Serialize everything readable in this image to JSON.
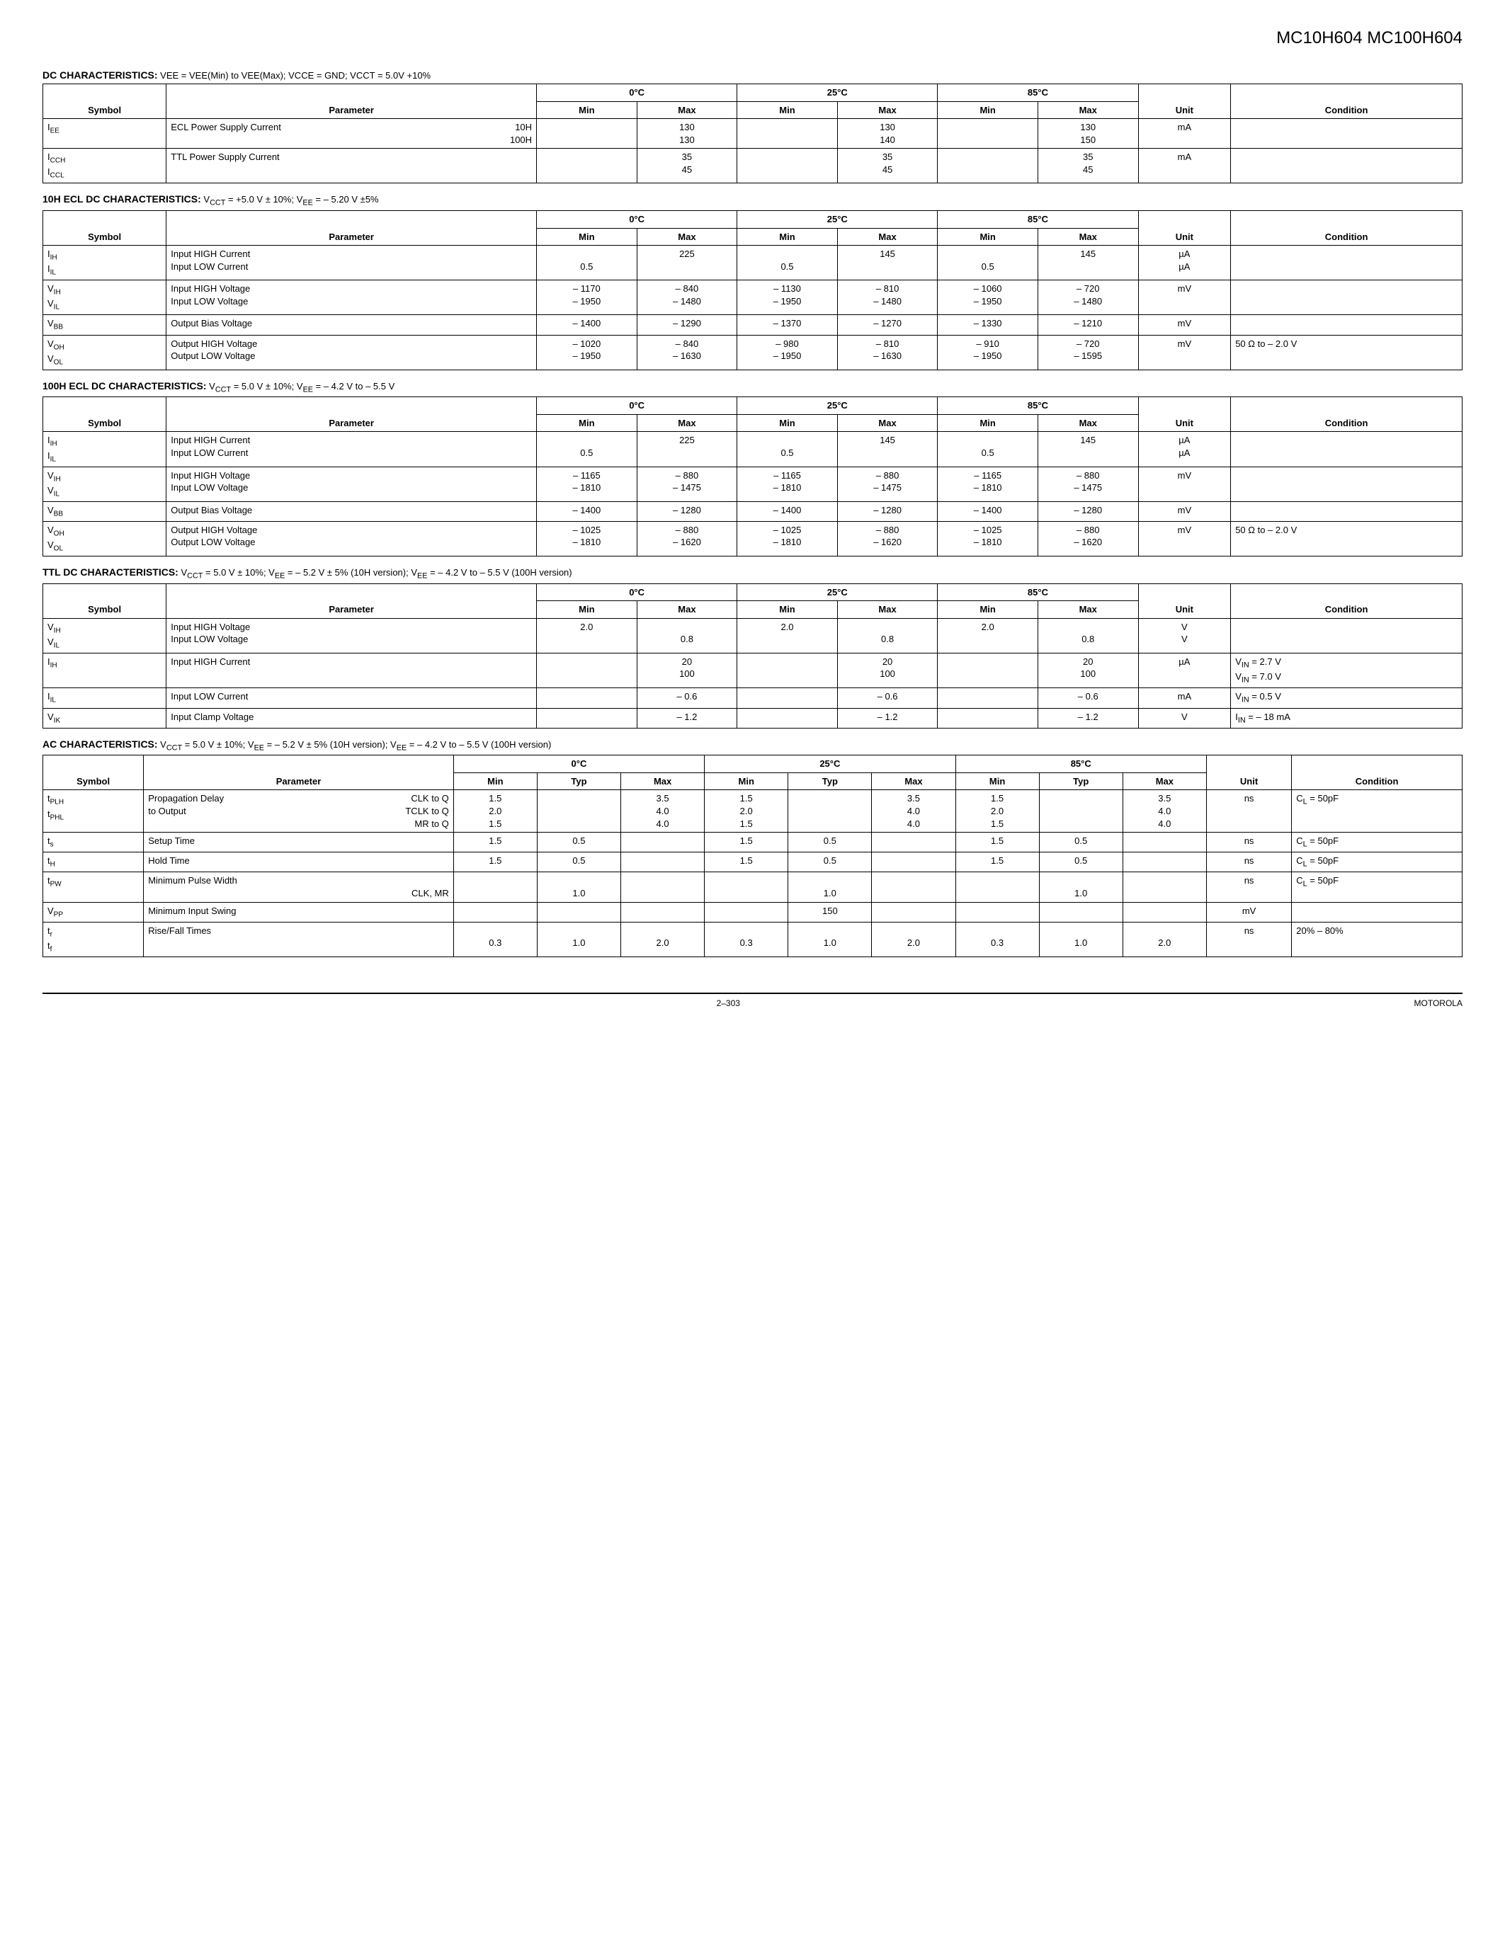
{
  "page": {
    "part_numbers": "MC10H604 MC100H604",
    "page_number": "2–303",
    "vendor": "MOTOROLA"
  },
  "tables": {
    "dc": {
      "title_bold": "DC CHARACTERISTICS:",
      "title_cond": " VEE = VEE(Min) to VEE(Max); VCCE = GND; VCCT = 5.0V +10%",
      "temps": [
        "0°C",
        "25°C",
        "85°C"
      ],
      "head": {
        "symbol": "Symbol",
        "parameter": "Parameter",
        "min": "Min",
        "max": "Max",
        "unit": "Unit",
        "condition": "Condition"
      },
      "rows": [
        {
          "sym_html": "I<span class='sub'>EE</span>",
          "param_left": "ECL Power Supply Current",
          "param_right": "10H\n100H",
          "min0": "",
          "max0": "130\n130",
          "min25": "",
          "max25": "130\n140",
          "min85": "",
          "max85": "130\n150",
          "unit": "mA",
          "cond": ""
        },
        {
          "sym_html": "I<span class='sub'>CCH</span>\nI<span class='sub'>CCL</span>",
          "param_left": "TTL Power Supply Current",
          "param_right": "",
          "min0": "",
          "max0": "35\n45",
          "min25": "",
          "max25": "35\n45",
          "min85": "",
          "max85": "35\n45",
          "unit": "mA",
          "cond": ""
        }
      ]
    },
    "ecl10h": {
      "title_bold": "10H ECL DC CHARACTERISTICS:",
      "title_cond": " V<sub>CCT</sub> = +5.0 V ± 10%; V<sub>EE</sub> = – 5.20 V ±5%",
      "temps": [
        "0°C",
        "25°C",
        "85°C"
      ],
      "head": {
        "symbol": "Symbol",
        "parameter": "Parameter",
        "min": "Min",
        "max": "Max",
        "unit": "Unit",
        "condition": "Condition"
      },
      "rows": [
        {
          "sym_html": "I<span class='sub'>IH</span>\nI<span class='sub'>IL</span>",
          "param": "Input HIGH Current\nInput LOW Current",
          "min0": "\n0.5",
          "max0": "225",
          "min25": "\n0.5",
          "max25": "145",
          "min85": "\n0.5",
          "max85": "145",
          "unit": "µA\nµA",
          "cond": ""
        },
        {
          "sym_html": "V<span class='sub'>IH</span>\nV<span class='sub'>IL</span>",
          "param": "Input HIGH Voltage\nInput LOW Voltage",
          "min0": "– 1170\n– 1950",
          "max0": "– 840\n– 1480",
          "min25": "– 1130\n– 1950",
          "max25": "– 810\n– 1480",
          "min85": "– 1060\n– 1950",
          "max85": "– 720\n– 1480",
          "unit": "mV",
          "cond": ""
        },
        {
          "sym_html": "V<span class='sub'>BB</span>",
          "param": "Output Bias Voltage",
          "min0": "– 1400",
          "max0": "– 1290",
          "min25": "– 1370",
          "max25": "– 1270",
          "min85": "– 1330",
          "max85": "– 1210",
          "unit": "mV",
          "cond": ""
        },
        {
          "sym_html": "V<span class='sub'>OH</span>\nV<span class='sub'>OL</span>",
          "param": "Output HIGH Voltage\nOutput LOW Voltage",
          "min0": "– 1020\n– 1950",
          "max0": "– 840\n– 1630",
          "min25": "– 980\n– 1950",
          "max25": "– 810\n– 1630",
          "min85": "– 910\n– 1950",
          "max85": "– 720\n– 1595",
          "unit": "mV",
          "cond": "50 Ω to – 2.0 V"
        }
      ]
    },
    "ecl100h": {
      "title_bold": "100H ECL DC CHARACTERISTICS:",
      "title_cond": " V<sub>CCT</sub> = 5.0 V ± 10%; V<sub>EE</sub> = – 4.2 V to – 5.5 V",
      "temps": [
        "0°C",
        "25°C",
        "85°C"
      ],
      "head": {
        "symbol": "Symbol",
        "parameter": "Parameter",
        "min": "Min",
        "max": "Max",
        "unit": "Unit",
        "condition": "Condition"
      },
      "rows": [
        {
          "sym_html": "I<span class='sub'>IH</span>\nI<span class='sub'>IL</span>",
          "param": "Input HIGH Current\nInput LOW Current",
          "min0": "\n0.5",
          "max0": "225",
          "min25": "\n0.5",
          "max25": "145",
          "min85": "\n0.5",
          "max85": "145",
          "unit": "µA\nµA",
          "cond": ""
        },
        {
          "sym_html": "V<span class='sub'>IH</span>\nV<span class='sub'>IL</span>",
          "param": "Input HIGH Voltage\nInput LOW Voltage",
          "min0": "– 1165\n– 1810",
          "max0": "– 880\n– 1475",
          "min25": "– 1165\n– 1810",
          "max25": "– 880\n– 1475",
          "min85": "– 1165\n– 1810",
          "max85": "– 880\n– 1475",
          "unit": "mV",
          "cond": ""
        },
        {
          "sym_html": "V<span class='sub'>BB</span>",
          "param": "Output Bias Voltage",
          "min0": "– 1400",
          "max0": "– 1280",
          "min25": "– 1400",
          "max25": "– 1280",
          "min85": "– 1400",
          "max85": "– 1280",
          "unit": "mV",
          "cond": ""
        },
        {
          "sym_html": "V<span class='sub'>OH</span>\nV<span class='sub'>OL</span>",
          "param": "Output HIGH Voltage\nOutput LOW Voltage",
          "min0": "– 1025\n– 1810",
          "max0": "– 880\n– 1620",
          "min25": "– 1025\n– 1810",
          "max25": "– 880\n– 1620",
          "min85": "– 1025\n– 1810",
          "max85": "– 880\n– 1620",
          "unit": "mV",
          "cond": "50 Ω to – 2.0 V"
        }
      ]
    },
    "ttl": {
      "title_bold": "TTL DC CHARACTERISTICS:",
      "title_cond": " V<sub>CCT</sub> = 5.0 V ± 10%; V<sub>EE</sub> = – 5.2 V ± 5% (10H version); V<sub>EE</sub> = – 4.2 V to – 5.5 V (100H version)",
      "temps": [
        "0°C",
        "25°C",
        "85°C"
      ],
      "head": {
        "symbol": "Symbol",
        "parameter": "Parameter",
        "min": "Min",
        "max": "Max",
        "unit": "Unit",
        "condition": "Condition"
      },
      "rows": [
        {
          "sym_html": "V<span class='sub'>IH</span>\nV<span class='sub'>IL</span>",
          "param": "Input HIGH Voltage\nInput LOW Voltage",
          "min0": "2.0",
          "max0": "\n0.8",
          "min25": "2.0",
          "max25": "\n0.8",
          "min85": "2.0",
          "max85": "\n0.8",
          "unit": "V\nV",
          "cond": ""
        },
        {
          "sym_html": "I<span class='sub'>IH</span>",
          "param": "Input HIGH Current",
          "min0": "",
          "max0": "20\n100",
          "min25": "",
          "max25": "20\n100",
          "min85": "",
          "max85": "20\n100",
          "unit": "µA",
          "cond": "V<sub>IN</sub> = 2.7 V\nV<sub>IN</sub> = 7.0 V"
        },
        {
          "sym_html": "I<span class='sub'>IL</span>",
          "param": "Input LOW Current",
          "min0": "",
          "max0": "– 0.6",
          "min25": "",
          "max25": "– 0.6",
          "min85": "",
          "max85": "– 0.6",
          "unit": "mA",
          "cond": "V<sub>IN</sub> = 0.5 V"
        },
        {
          "sym_html": "V<span class='sub'>IK</span>",
          "param": "Input Clamp Voltage",
          "min0": "",
          "max0": "– 1.2",
          "min25": "",
          "max25": "– 1.2",
          "min85": "",
          "max85": "– 1.2",
          "unit": "V",
          "cond": "I<sub>IN</sub> = – 18 mA"
        }
      ]
    },
    "ac": {
      "title_bold": "AC CHARACTERISTICS:",
      "title_cond": " V<sub>CCT</sub> = 5.0 V ± 10%; V<sub>EE</sub> = – 5.2 V ± 5% (10H version); V<sub>EE</sub> = – 4.2 V to – 5.5 V (100H version)",
      "temps": [
        "0°C",
        "25°C",
        "85°C"
      ],
      "head": {
        "symbol": "Symbol",
        "parameter": "Parameter",
        "min": "Min",
        "typ": "Typ",
        "max": "Max",
        "unit": "Unit",
        "condition": "Condition"
      },
      "rows": [
        {
          "sym_html": "t<span class='sub'>PLH</span>\nt<span class='sub'>PHL</span>",
          "param_left": "Propagation Delay\nto Output",
          "param_right": "CLK to Q\nTCLK to Q\nMR to Q",
          "min0": "1.5\n2.0\n1.5",
          "typ0": "",
          "max0": "3.5\n4.0\n4.0",
          "min25": "1.5\n2.0\n1.5",
          "typ25": "",
          "max25": "3.5\n4.0\n4.0",
          "min85": "1.5\n2.0\n1.5",
          "typ85": "",
          "max85": "3.5\n4.0\n4.0",
          "unit": "ns",
          "cond": "C<sub>L</sub> = 50pF"
        },
        {
          "sym_html": "t<span class='sub'>s</span>",
          "param": "Setup Time",
          "min0": "1.5",
          "typ0": "0.5",
          "max0": "",
          "min25": "1.5",
          "typ25": "0.5",
          "max25": "",
          "min85": "1.5",
          "typ85": "0.5",
          "max85": "",
          "unit": "ns",
          "cond": "C<sub>L</sub> = 50pF"
        },
        {
          "sym_html": "t<span class='sub'>H</span>",
          "param": "Hold Time",
          "min0": "1.5",
          "typ0": "0.5",
          "max0": "",
          "min25": "1.5",
          "typ25": "0.5",
          "max25": "",
          "min85": "1.5",
          "typ85": "0.5",
          "max85": "",
          "unit": "ns",
          "cond": "C<sub>L</sub> = 50pF"
        },
        {
          "sym_html": "t<span class='sub'>PW</span>",
          "param_left": "Minimum Pulse Width",
          "param_right": "\nCLK, MR",
          "min0": "",
          "typ0": "\n1.0",
          "max0": "",
          "min25": "",
          "typ25": "\n1.0",
          "max25": "",
          "min85": "",
          "typ85": "\n1.0",
          "max85": "",
          "unit": "ns",
          "cond": "C<sub>L</sub> = 50pF"
        },
        {
          "sym_html": "V<span class='sub'>PP</span>",
          "param": "Minimum Input Swing",
          "min0": "",
          "typ0": "",
          "max0": "",
          "min25": "",
          "typ25": "150",
          "max25": "",
          "min85": "",
          "typ85": "",
          "max85": "",
          "unit": "mV",
          "cond": ""
        },
        {
          "sym_html": "t<span class='sub'>r</span>\nt<span class='sub'>f</span>",
          "param": "Rise/Fall Times",
          "min0": "\n0.3",
          "typ0": "\n1.0",
          "max0": "\n2.0",
          "min25": "\n0.3",
          "typ25": "\n1.0",
          "max25": "\n2.0",
          "min85": "\n0.3",
          "typ85": "\n1.0",
          "max85": "\n2.0",
          "unit": "ns",
          "cond": "20% – 80%"
        }
      ]
    }
  }
}
